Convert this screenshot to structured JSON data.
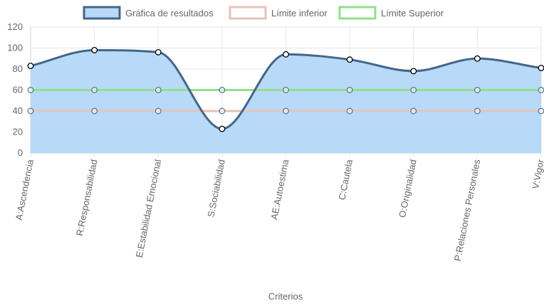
{
  "chart_data": {
    "type": "line",
    "xlabel": "Criterios",
    "ylabel": "",
    "ylim": [
      0,
      120
    ],
    "yticks": [
      0,
      20,
      40,
      60,
      80,
      100,
      120
    ],
    "grid": true,
    "legend_position": "top",
    "categories": [
      "A:Ascendencia",
      "R:Responsabilidad",
      "E:Estabilidad Emocional",
      "S:Sociabilidad",
      "AE:Autoestima",
      "C:Cautela",
      "O:Originalidad",
      "P:Relaciones Personales",
      "V:Vigor"
    ],
    "series": [
      {
        "name": "Gráfica de resultados",
        "values": [
          83,
          98,
          96,
          23,
          94,
          89,
          78,
          90,
          81
        ],
        "color": "#446688",
        "fill": "#b8d9f7",
        "filled": true
      },
      {
        "name": "Límite inferior",
        "values": [
          40,
          40,
          40,
          40,
          40,
          40,
          40,
          40,
          40
        ],
        "color": "#e6c3b8",
        "filled": false
      },
      {
        "name": "Límite Superior",
        "values": [
          60,
          60,
          60,
          60,
          60,
          60,
          60,
          60,
          60
        ],
        "color": "#8fe08a",
        "filled": false
      }
    ]
  }
}
